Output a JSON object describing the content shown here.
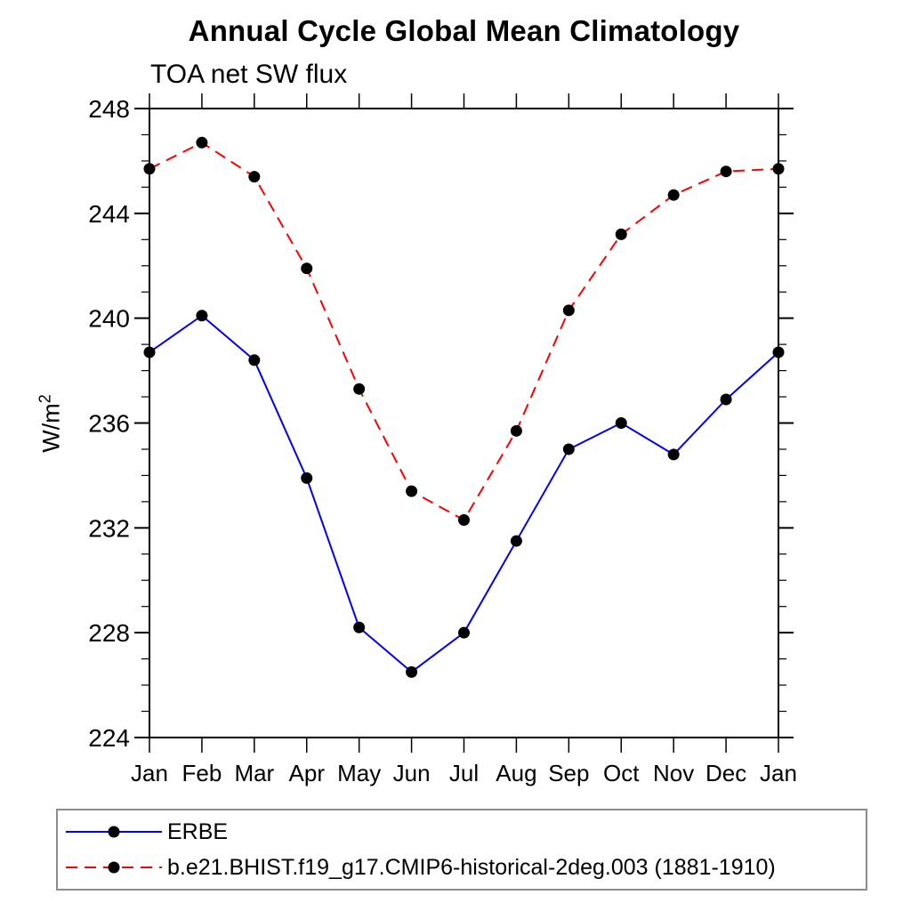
{
  "page": {
    "background": "#ffffff"
  },
  "chart_data": {
    "type": "line",
    "title": "Annual Cycle Global Mean Climatology",
    "subtitle": "TOA net SW flux",
    "xlabel": "",
    "ylabel": "W/m2",
    "ylabel_base": "W/m",
    "ylabel_superscript": "2",
    "categories": [
      "Jan",
      "Feb",
      "Mar",
      "Apr",
      "May",
      "Jun",
      "Jul",
      "Aug",
      "Sep",
      "Oct",
      "Nov",
      "Dec",
      "Jan"
    ],
    "ylim": [
      224,
      248
    ],
    "ytick_major_interval": 4,
    "ytick_minor_interval": 1,
    "ytick_major_labels": [
      "224",
      "228",
      "232",
      "236",
      "240",
      "244",
      "248"
    ],
    "grid": false,
    "frame_color": "#000000",
    "marker_color": "#000000",
    "legend_position": "bottom-left-boxed",
    "legend_border_color": "#8c8c8c",
    "series": [
      {
        "name": "ERBE",
        "color": "#0000ff",
        "line_style": "solid",
        "marker": "filled-circle",
        "values": [
          238.7,
          240.1,
          238.4,
          233.9,
          228.2,
          226.5,
          228.0,
          231.5,
          235.0,
          236.0,
          234.8,
          236.9,
          238.7
        ]
      },
      {
        "name": "b.e21.BHIST.f19_g17.CMIP6-historical-2deg.003 (1881-1910)",
        "color": "#ff0000",
        "line_style": "dashed",
        "marker": "filled-circle",
        "values": [
          245.7,
          246.7,
          245.4,
          241.9,
          237.3,
          233.4,
          232.3,
          235.7,
          240.3,
          243.2,
          244.7,
          245.6,
          245.7
        ]
      }
    ]
  }
}
